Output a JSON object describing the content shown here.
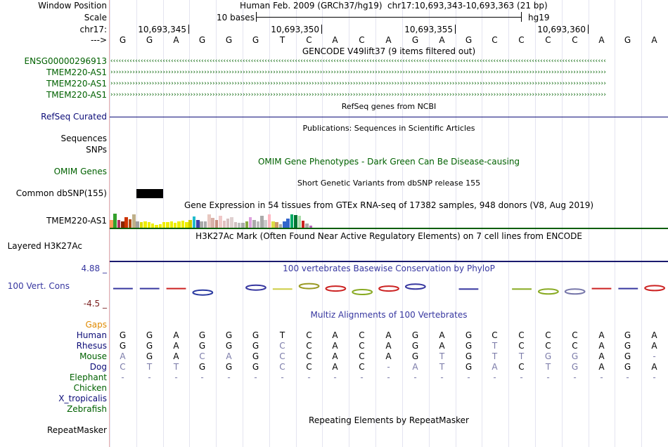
{
  "labels": {
    "window_position": "Window Position",
    "scale": "Scale",
    "chr": "chr17:",
    "arrow": "--->",
    "gene1": "ENSG00000296913",
    "gene2": "TMEM220-AS1",
    "gene3": "TMEM220-AS1",
    "gene4": "TMEM220-AS1",
    "refseq": "RefSeq Curated",
    "sequences": "Sequences",
    "snps": "SNPs",
    "omim": "OMIM Genes",
    "dbsnp": "Common dbSNP(155)",
    "gtex": "TMEM220-AS1",
    "h3k27": "Layered H3K27Ac",
    "cons_max": "4.88 _",
    "cons_name": "100 Vert. Cons",
    "cons_min": "-4.5 _",
    "gaps": "Gaps",
    "repeatmasker": "RepeatMasker"
  },
  "colors": {
    "gene_green": "#006100",
    "refseq_navy": "#0c0c78",
    "phylop_blue": "#3737a0",
    "cons_min_red": "#7a1f1f",
    "gaps_orange": "#e08a00",
    "species_green": "#006100",
    "species_navy": "#0c0c78",
    "h3k27_line": "#1a1a6e",
    "gtex_line": "#0a5e0a"
  },
  "header": {
    "assembly": "Human Feb. 2009 (GRCh37/hg19)",
    "position": "chr17:10,693,343-10,693,363 (21 bp)",
    "scale_text": "10 bases",
    "scale_db": "hg19",
    "ticks": [
      "10,693,345",
      "10,693,350",
      "10,693,355",
      "10,693,360"
    ]
  },
  "bases": [
    "G",
    "G",
    "A",
    "G",
    "G",
    "G",
    "T",
    "C",
    "A",
    "C",
    "A",
    "G",
    "A",
    "G",
    "C",
    "C",
    "C",
    "C",
    "A",
    "G",
    "A"
  ],
  "tracks": {
    "gencode": "GENCODE V49lift37 (9 items filtered out)",
    "refseq": "RefSeq genes from NCBI",
    "publications": "Publications: Sequences in Scientific Articles",
    "omim": "OMIM Gene Phenotypes - Dark Green Can Be Disease-causing",
    "dbsnp": "Short Genetic Variants from dbSNP release 155",
    "gtex": "Gene Expression in 54 tissues from GTEx RNA-seq of 17382 samples, 948 donors (V8, Aug 2019)",
    "h3k27": "H3K27Ac Mark (Often Found Near Active Regulatory Elements) on 7 cell lines from ENCODE",
    "phylop": "100 vertebrates Basewise Conservation by PhyloP",
    "multiz": "Multiz Alignments of 100 Vertebrates",
    "repeatmasker": "Repeating Elements by RepeatMasker"
  },
  "alignment": [
    {
      "species": "Human",
      "label_color": "navy",
      "seq": [
        "G",
        "G",
        "A",
        "G",
        "G",
        "G",
        "T",
        "C",
        "A",
        "C",
        "A",
        "G",
        "A",
        "G",
        "C",
        "C",
        "C",
        "C",
        "A",
        "G",
        "A"
      ]
    },
    {
      "species": "Rhesus",
      "label_color": "navy",
      "seq": [
        "G",
        "G",
        "A",
        "G",
        "G",
        "G",
        "C",
        "C",
        "A",
        "C",
        "A",
        "G",
        "A",
        "G",
        "T",
        "C",
        "C",
        "C",
        "A",
        "G",
        "A"
      ]
    },
    {
      "species": "Mouse",
      "label_color": "green",
      "seq": [
        "A",
        "G",
        "A",
        "C",
        "A",
        "G",
        "C",
        "C",
        "A",
        "C",
        "A",
        "G",
        "T",
        "G",
        "T",
        "T",
        "G",
        "G",
        "A",
        "G",
        "-"
      ]
    },
    {
      "species": "Dog",
      "label_color": "navy",
      "seq": [
        "C",
        "T",
        "T",
        "G",
        "G",
        "G",
        "C",
        "C",
        "A",
        "C",
        "-",
        "A",
        "T",
        "G",
        "A",
        "C",
        "T",
        "G",
        "A",
        "G",
        "A"
      ]
    },
    {
      "species": "Elephant",
      "label_color": "green",
      "seq": [
        "-",
        "-",
        "-",
        "-",
        "-",
        "-",
        "-",
        "-",
        "-",
        "-",
        "-",
        "-",
        "-",
        "-",
        "-",
        "-",
        "-",
        "-",
        "-",
        "-",
        "-"
      ]
    },
    {
      "species": "Chicken",
      "label_color": "green",
      "seq": []
    },
    {
      "species": "X_tropicalis",
      "label_color": "navy",
      "seq": []
    },
    {
      "species": "Zebrafish",
      "label_color": "green",
      "seq": []
    }
  ],
  "gtex_bars": [
    {
      "h": 0.55,
      "c": "#ff9a5a"
    },
    {
      "h": 1.0,
      "c": "#33a02c"
    },
    {
      "h": 0.55,
      "c": "#b03060"
    },
    {
      "h": 0.45,
      "c": "#8b2500"
    },
    {
      "h": 0.75,
      "c": "#cc3300"
    },
    {
      "h": 0.6,
      "c": "#b04a10"
    },
    {
      "h": 0.95,
      "c": "#bfb08a"
    },
    {
      "h": 0.45,
      "c": "#a0a0a0"
    },
    {
      "h": 0.4,
      "c": "#dddd00"
    },
    {
      "h": 0.45,
      "c": "#eeee00"
    },
    {
      "h": 0.4,
      "c": "#eeee00"
    },
    {
      "h": 0.3,
      "c": "#eeee00"
    },
    {
      "h": 0.2,
      "c": "#eeee00"
    },
    {
      "h": 0.25,
      "c": "#eeee00"
    },
    {
      "h": 0.4,
      "c": "#eeee00"
    },
    {
      "h": 0.4,
      "c": "#eeee00"
    },
    {
      "h": 0.45,
      "c": "#eeee00"
    },
    {
      "h": 0.35,
      "c": "#eeee00"
    },
    {
      "h": 0.45,
      "c": "#eeee00"
    },
    {
      "h": 0.5,
      "c": "#eeee00"
    },
    {
      "h": 0.4,
      "c": "#eeee00"
    },
    {
      "h": 0.55,
      "c": "#cccc00"
    },
    {
      "h": 0.8,
      "c": "#22bbcc"
    },
    {
      "h": 0.55,
      "c": "#4040aa"
    },
    {
      "h": 0.45,
      "c": "#aaaaaa"
    },
    {
      "h": 0.45,
      "c": "#aaaaaa"
    },
    {
      "h": 0.95,
      "c": "#e8c8c0"
    },
    {
      "h": 0.7,
      "c": "#d8b0a8"
    },
    {
      "h": 0.55,
      "c": "#c89080"
    },
    {
      "h": 0.85,
      "c": "#f0c8c8"
    },
    {
      "h": 0.5,
      "c": "#e0c0c0"
    },
    {
      "h": 0.65,
      "c": "#d8c0c0"
    },
    {
      "h": 0.75,
      "c": "#e0d0d0"
    },
    {
      "h": 0.4,
      "c": "#d0c0c0"
    },
    {
      "h": 0.35,
      "c": "#c0c0c0"
    },
    {
      "h": 0.35,
      "c": "#aaaaaa"
    },
    {
      "h": 0.45,
      "c": "#88aa44"
    },
    {
      "h": 0.75,
      "c": "#dda0dd"
    },
    {
      "h": 0.55,
      "c": "#aaaaaa"
    },
    {
      "h": 0.45,
      "c": "#bbbbbb"
    },
    {
      "h": 0.85,
      "c": "#aaaaaa"
    },
    {
      "h": 0.55,
      "c": "#cccccc"
    },
    {
      "h": 0.95,
      "c": "#ffb6c1"
    },
    {
      "h": 0.45,
      "c": "#dddd44"
    },
    {
      "h": 0.4,
      "c": "#cc9966"
    },
    {
      "h": 0.25,
      "c": "#aaaaaa"
    },
    {
      "h": 0.45,
      "c": "#3366cc"
    },
    {
      "h": 0.65,
      "c": "#3366cc"
    },
    {
      "h": 0.95,
      "c": "#00aa66"
    },
    {
      "h": 0.9,
      "c": "#007733"
    },
    {
      "h": 0.85,
      "c": "#aaddaa"
    },
    {
      "h": 0.5,
      "c": "#cc2222"
    },
    {
      "h": 0.3,
      "c": "#aaaaaa"
    },
    {
      "h": 0.15,
      "c": "#bb66bb"
    }
  ],
  "phylop": [
    {
      "score": 0.1,
      "color": "#3737a0",
      "glyph": "flat"
    },
    {
      "score": 0.1,
      "color": "#3737a0",
      "glyph": "flat"
    },
    {
      "score": 0.1,
      "color": "#cc2222",
      "glyph": "flat"
    },
    {
      "score": -0.3,
      "color": "#2a3aa0",
      "glyph": "G"
    },
    {
      "score": 0.0,
      "color": "#888888",
      "glyph": "none"
    },
    {
      "score": 0.2,
      "color": "#3737a0",
      "glyph": "G"
    },
    {
      "score": 0.05,
      "color": "#cccc44",
      "glyph": "flat"
    },
    {
      "score": 0.35,
      "color": "#999922",
      "glyph": "C"
    },
    {
      "score": 0.1,
      "color": "#cc2222",
      "glyph": "A"
    },
    {
      "score": -0.25,
      "color": "#88aa22",
      "glyph": "C"
    },
    {
      "score": 0.1,
      "color": "#cc2222",
      "glyph": "A"
    },
    {
      "score": 0.3,
      "color": "#3737a0",
      "glyph": "G"
    },
    {
      "score": 0.0,
      "color": "#888888",
      "glyph": "none"
    },
    {
      "score": 0.05,
      "color": "#3737a0",
      "glyph": "flat"
    },
    {
      "score": 0.0,
      "color": "#888888",
      "glyph": "none"
    },
    {
      "score": 0.05,
      "color": "#88aa22",
      "glyph": "flat"
    },
    {
      "score": -0.2,
      "color": "#88aa22",
      "glyph": "C"
    },
    {
      "score": -0.2,
      "color": "#7777aa",
      "glyph": "C"
    },
    {
      "score": 0.1,
      "color": "#cc2222",
      "glyph": "flat"
    },
    {
      "score": 0.1,
      "color": "#3737a0",
      "glyph": "flat"
    },
    {
      "score": 0.15,
      "color": "#cc2222",
      "glyph": "A"
    }
  ]
}
